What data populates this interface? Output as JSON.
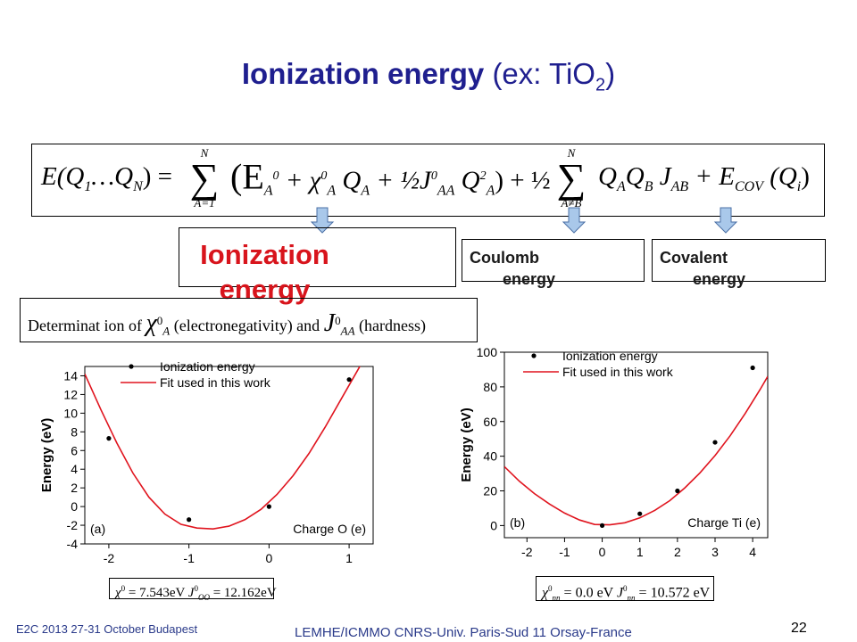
{
  "slide": {
    "title_bold": "Ionization energy",
    "title_rest": "(ex: TiO",
    "title_sub": "2",
    "title_close": ")",
    "page_number": "22"
  },
  "equation": {
    "lhs": "E(Q",
    "lhs_sub1": "1",
    "lhs_mid": "…Q",
    "lhs_subN": "N",
    "lhs_close": ") =",
    "sum1_top": "N",
    "sum1_bottom": "A=1",
    "term": "(E",
    "term_E_sub": "A",
    "term_E_sup": "0",
    "term_plus1": " + χ",
    "term_chi_sup": "0",
    "term_chi_sub": "A",
    "term_Q": " Q",
    "term_Q_sub": "A",
    "term_half": " + ½J",
    "term_J_sup": "0",
    "term_J_sub": "AA",
    "term_Q2": " Q",
    "term_Q2_sup": "2",
    "term_Q2_sub": "A",
    "term_close": ") + ½",
    "sum2_top": "N",
    "sum2_bottom": "A≠B",
    "term2": "Q",
    "term2_sub1": "A",
    "term2_Q": "Q",
    "term2_sub2": "B",
    "term2_J": " J",
    "term2_J_sub": "AB",
    "term2_plus": " + E",
    "term2_E_sub": "COV",
    "term2_end": " (Q",
    "term2_end_sub": "i",
    "term2_close": ")"
  },
  "callouts": {
    "ionization": "Ionization energy",
    "coulomb_1": "Coulomb",
    "coulomb_2": "energy",
    "covalent_1": "Covalent",
    "covalent_2": "energy"
  },
  "determination": {
    "text1": "Determinat ion of",
    "chi": "χ",
    "chi_sup": "0",
    "chi_sub": "A",
    "text2": "(electronegativity)  and",
    "J": "J",
    "J_sup": "0",
    "J_sub": "AA",
    "text3": "(hardness)"
  },
  "chart_data": [
    {
      "type": "scatter",
      "panel_label": "(a)",
      "xlabel": "Charge O (e)",
      "ylabel": "Energy (eV)",
      "xlim": [
        -2.3,
        1.3
      ],
      "ylim": [
        -4,
        15
      ],
      "xticks": [
        -2,
        -1,
        0,
        1
      ],
      "yticks": [
        -4,
        -2,
        0,
        2,
        4,
        6,
        8,
        10,
        12,
        14
      ],
      "legend": [
        "Ionization energy",
        "Fit used in this work"
      ],
      "series": [
        {
          "name": "Ionization energy",
          "x": [
            -2,
            -1,
            0,
            1
          ],
          "y": [
            7.3,
            -1.4,
            0.0,
            13.6
          ]
        },
        {
          "name": "Fit used in this work",
          "line": true,
          "x": [
            -2.3,
            -2.1,
            -1.9,
            -1.7,
            -1.5,
            -1.3,
            -1.1,
            -0.9,
            -0.7,
            -0.5,
            -0.3,
            -0.1,
            0.1,
            0.3,
            0.5,
            0.7,
            0.9,
            1.1,
            1.2
          ],
          "y": [
            14.2,
            10.4,
            6.8,
            3.6,
            1.0,
            -0.8,
            -1.9,
            -2.3,
            -2.4,
            -2.1,
            -1.4,
            -0.3,
            1.3,
            3.3,
            5.7,
            8.5,
            11.5,
            14.5,
            16.0
          ]
        }
      ],
      "parameters": {
        "chi": "χ",
        "chi_sup": "0",
        "chi_rest": "= 7.543eV",
        "J": "J",
        "J_sup": "0",
        "J_sub": "OO",
        "J_rest": "= 12.162eV"
      }
    },
    {
      "type": "scatter",
      "panel_label": "(b)",
      "xlabel": "Charge Ti (e)",
      "ylabel": "Energy (eV)",
      "xlim": [
        -2.6,
        4.4
      ],
      "ylim": [
        -7,
        100
      ],
      "xticks": [
        -2,
        -1,
        0,
        1,
        2,
        3,
        4
      ],
      "yticks": [
        0,
        20,
        40,
        60,
        80,
        100
      ],
      "legend": [
        "Ionization energy",
        "Fit used in this work"
      ],
      "series": [
        {
          "name": "Ionization energy",
          "x": [
            0,
            1,
            2,
            3,
            4
          ],
          "y": [
            0.0,
            6.8,
            20.0,
            48.0,
            91.0
          ]
        },
        {
          "name": "Fit used in this work",
          "line": true,
          "x": [
            -2.6,
            -2.2,
            -1.8,
            -1.4,
            -1.0,
            -0.6,
            -0.2,
            0.2,
            0.6,
            1.0,
            1.4,
            1.8,
            2.2,
            2.6,
            3.0,
            3.4,
            3.8,
            4.2,
            4.4
          ],
          "y": [
            34.0,
            25.5,
            18.4,
            12.4,
            7.2,
            3.2,
            0.6,
            0.4,
            1.6,
            4.4,
            8.8,
            14.4,
            21.8,
            30.4,
            40.4,
            51.8,
            64.6,
            78.6,
            86.0
          ]
        }
      ],
      "parameters": {
        "chi": "χ",
        "chi_sup": "0",
        "chi_sub": "nn",
        "chi_rest": "= 0.0 eV",
        "J": "J",
        "J_sup": "0",
        "J_sub": "nn",
        "J_rest": "= 10.572 eV"
      }
    }
  ],
  "footer": {
    "left": "E2C 2013 27-31 October Budapest",
    "center": "LEMHE/ICMMO CNRS-Univ. Paris-Sud 11 Orsay-France"
  },
  "colors": {
    "title": "#1f1f8f",
    "ionization_text": "#d8141c",
    "fit_line": "#e0141e",
    "arrow_fill": "#a9c8ea",
    "arrow_stroke": "#4a6fa5"
  }
}
